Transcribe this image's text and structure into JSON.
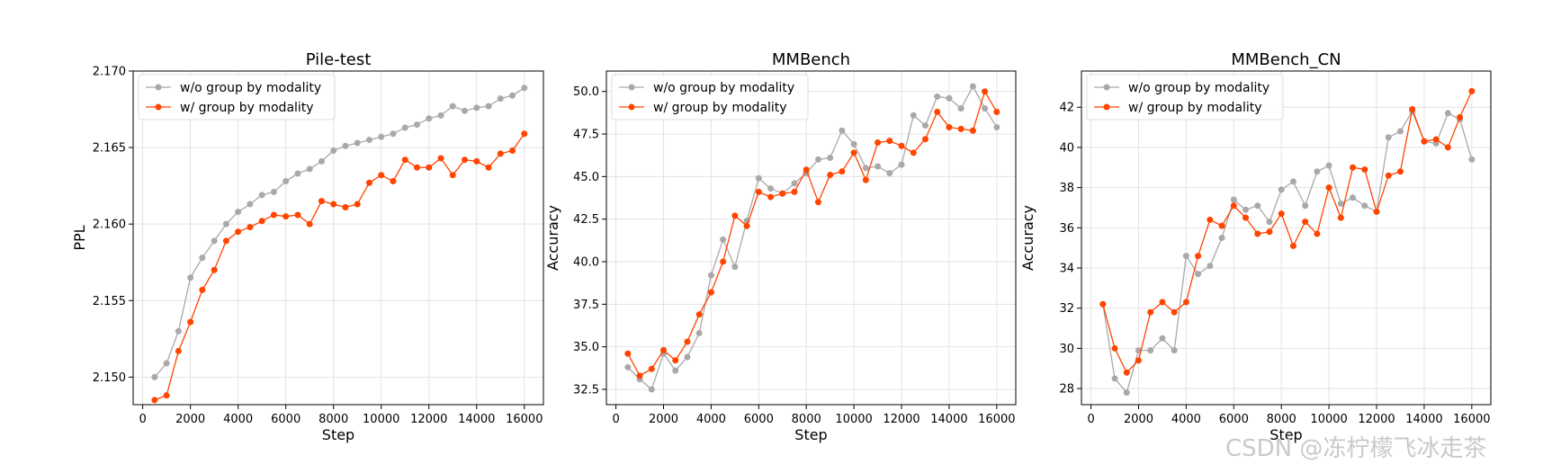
{
  "colors": {
    "wo_group": "#a9a9a9",
    "w_group": "#ff4500",
    "grid": "#e3e3e3"
  },
  "watermark": "CSDN @冻柠檬飞冰走茶",
  "chart_data": [
    {
      "type": "line",
      "title": "Pile-test",
      "xlabel": "Step",
      "ylabel": "PPL",
      "xlim": [
        -400,
        16800
      ],
      "ylim": [
        2.1482,
        2.17
      ],
      "xticks": [
        0,
        2000,
        4000,
        6000,
        8000,
        10000,
        12000,
        14000,
        16000
      ],
      "xtick_labels": [
        "0",
        "2000",
        "4000",
        "6000",
        "8000",
        "10000",
        "12000",
        "14000",
        "16000"
      ],
      "yticks": [
        2.15,
        2.155,
        2.16,
        2.165,
        2.17
      ],
      "ytick_labels": [
        "2.150",
        "2.155",
        "2.160",
        "2.165",
        "2.170"
      ],
      "grid": true,
      "legend_position": "upper-left",
      "x": [
        500,
        1000,
        1500,
        2000,
        2500,
        3000,
        3500,
        4000,
        4500,
        5000,
        5500,
        6000,
        6500,
        7000,
        7500,
        8000,
        8500,
        9000,
        9500,
        10000,
        10500,
        11000,
        11500,
        12000,
        12500,
        13000,
        13500,
        14000,
        14500,
        15000,
        15500,
        16000
      ],
      "series": [
        {
          "name": "w/o group by modality",
          "color": "#a9a9a9",
          "values": [
            2.15,
            2.1509,
            2.153,
            2.1565,
            2.1578,
            2.1589,
            2.16,
            2.1608,
            2.1613,
            2.1619,
            2.1621,
            2.1628,
            2.1633,
            2.1636,
            2.1641,
            2.1648,
            2.1651,
            2.1653,
            2.1655,
            2.1657,
            2.1659,
            2.1663,
            2.1665,
            2.1669,
            2.1671,
            2.1677,
            2.1674,
            2.1676,
            2.1677,
            2.1682,
            2.1684,
            2.1689
          ]
        },
        {
          "name": "w/ group by modality",
          "color": "#ff4500",
          "values": [
            2.1485,
            2.1488,
            2.1517,
            2.1536,
            2.1557,
            2.157,
            2.1589,
            2.1595,
            2.1598,
            2.1602,
            2.1606,
            2.1605,
            2.1606,
            2.16,
            2.1615,
            2.1613,
            2.1611,
            2.1613,
            2.1627,
            2.1632,
            2.1628,
            2.1642,
            2.1637,
            2.1637,
            2.1643,
            2.1632,
            2.1642,
            2.1641,
            2.1637,
            2.1646,
            2.1648,
            2.1659
          ]
        }
      ]
    },
    {
      "type": "line",
      "title": "MMBench",
      "xlabel": "Step",
      "ylabel": "Accuracy",
      "xlim": [
        -400,
        16800
      ],
      "ylim": [
        31.6,
        51.2
      ],
      "xticks": [
        0,
        2000,
        4000,
        6000,
        8000,
        10000,
        12000,
        14000,
        16000
      ],
      "xtick_labels": [
        "0",
        "2000",
        "4000",
        "6000",
        "8000",
        "10000",
        "12000",
        "14000",
        "16000"
      ],
      "yticks": [
        32.5,
        35.0,
        37.5,
        40.0,
        42.5,
        45.0,
        47.5,
        50.0
      ],
      "ytick_labels": [
        "32.5",
        "35.0",
        "37.5",
        "40.0",
        "42.5",
        "45.0",
        "47.5",
        "50.0"
      ],
      "grid": true,
      "legend_position": "upper-left",
      "x": [
        500,
        1000,
        1500,
        2000,
        2500,
        3000,
        3500,
        4000,
        4500,
        5000,
        5500,
        6000,
        6500,
        7000,
        7500,
        8000,
        8500,
        9000,
        9500,
        10000,
        10500,
        11000,
        11500,
        12000,
        12500,
        13000,
        13500,
        14000,
        14500,
        15000,
        15500,
        16000
      ],
      "series": [
        {
          "name": "w/o group by modality",
          "color": "#a9a9a9",
          "values": [
            33.8,
            33.1,
            32.5,
            34.6,
            33.6,
            34.4,
            35.8,
            39.2,
            41.3,
            39.7,
            42.4,
            44.9,
            44.3,
            44.0,
            44.6,
            45.2,
            46.0,
            46.1,
            47.7,
            46.9,
            45.5,
            45.6,
            45.2,
            45.7,
            48.6,
            48.0,
            49.7,
            49.6,
            49.0,
            50.3,
            49.0,
            47.9
          ]
        },
        {
          "name": "w/ group by modality",
          "color": "#ff4500",
          "values": [
            34.6,
            33.3,
            33.7,
            34.8,
            34.2,
            35.3,
            36.9,
            38.2,
            40.0,
            42.7,
            42.1,
            44.1,
            43.8,
            44.0,
            44.1,
            45.4,
            43.5,
            45.1,
            45.3,
            46.4,
            44.8,
            47.0,
            47.1,
            46.8,
            46.4,
            47.2,
            48.8,
            47.9,
            47.8,
            47.7,
            50.0,
            48.8
          ]
        }
      ]
    },
    {
      "type": "line",
      "title": "MMBench_CN",
      "xlabel": "Step",
      "ylabel": "Accuracy",
      "xlim": [
        -400,
        16800
      ],
      "ylim": [
        27.2,
        43.8
      ],
      "xticks": [
        0,
        2000,
        4000,
        6000,
        8000,
        10000,
        12000,
        14000,
        16000
      ],
      "xtick_labels": [
        "0",
        "2000",
        "4000",
        "6000",
        "8000",
        "10000",
        "12000",
        "14000",
        "16000"
      ],
      "yticks": [
        28,
        30,
        32,
        34,
        36,
        38,
        40,
        42
      ],
      "ytick_labels": [
        "28",
        "30",
        "32",
        "34",
        "36",
        "38",
        "40",
        "42"
      ],
      "grid": true,
      "legend_position": "upper-left",
      "x": [
        500,
        1000,
        1500,
        2000,
        2500,
        3000,
        3500,
        4000,
        4500,
        5000,
        5500,
        6000,
        6500,
        7000,
        7500,
        8000,
        8500,
        9000,
        9500,
        10000,
        10500,
        11000,
        11500,
        12000,
        12500,
        13000,
        13500,
        14000,
        14500,
        15000,
        15500,
        16000
      ],
      "series": [
        {
          "name": "w/o group by modality",
          "color": "#a9a9a9",
          "values": [
            32.2,
            28.5,
            27.8,
            29.9,
            29.9,
            30.5,
            29.9,
            34.6,
            33.7,
            34.1,
            35.5,
            37.4,
            36.9,
            37.1,
            36.3,
            37.9,
            38.3,
            37.1,
            38.8,
            39.1,
            37.2,
            37.5,
            37.1,
            36.8,
            40.5,
            40.8,
            41.8,
            40.3,
            40.2,
            41.7,
            41.4,
            39.4
          ]
        },
        {
          "name": "w/ group by modality",
          "color": "#ff4500",
          "values": [
            32.2,
            30.0,
            28.8,
            29.4,
            31.8,
            32.3,
            31.8,
            32.3,
            34.6,
            36.4,
            36.1,
            37.1,
            36.5,
            35.7,
            35.8,
            36.7,
            35.1,
            36.3,
            35.7,
            38.0,
            36.5,
            39.0,
            38.9,
            36.8,
            38.6,
            38.8,
            41.9,
            40.3,
            40.4,
            40.0,
            41.5,
            42.8
          ]
        }
      ]
    }
  ]
}
